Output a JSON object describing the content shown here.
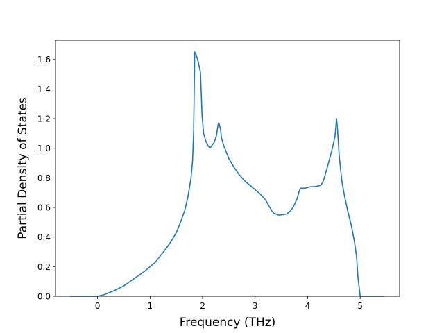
{
  "chart_data": {
    "type": "line",
    "title": "",
    "xlabel": "Frequency (THz)",
    "ylabel": "Partial Density of States",
    "xlim": [
      -0.8,
      5.75
    ],
    "ylim": [
      0.0,
      1.73
    ],
    "xticks": [
      0,
      1,
      2,
      3,
      4,
      5
    ],
    "yticks": [
      0.0,
      0.2,
      0.4,
      0.6,
      0.8,
      1.0,
      1.2,
      1.4,
      1.6
    ],
    "ytick_labels": [
      "0.0",
      "0.2",
      "0.4",
      "0.6",
      "0.8",
      "1.0",
      "1.2",
      "1.4",
      "1.6"
    ],
    "grid": false,
    "legend": "none",
    "colors": {
      "line": "#1f77b4",
      "axes": "#000000"
    },
    "series": [
      {
        "x": [
          -0.52,
          -0.3,
          0.0,
          0.12,
          0.3,
          0.5,
          0.7,
          0.9,
          1.1,
          1.3,
          1.4,
          1.5,
          1.58,
          1.66,
          1.72,
          1.78,
          1.81,
          1.83,
          1.85,
          1.88,
          1.92,
          1.96,
          1.99,
          2.02,
          2.06,
          2.1,
          2.14,
          2.18,
          2.22,
          2.26,
          2.3,
          2.32,
          2.34,
          2.36,
          2.4,
          2.5,
          2.6,
          2.7,
          2.8,
          2.9,
          3.0,
          3.1,
          3.2,
          3.28,
          3.33,
          3.36,
          3.4,
          3.45,
          3.5,
          3.6,
          3.68,
          3.72,
          3.75,
          3.8,
          3.83,
          3.86,
          3.9,
          3.95,
          4.0,
          4.05,
          4.1,
          4.15,
          4.2,
          4.25,
          4.3,
          4.34,
          4.38,
          4.42,
          4.47,
          4.52,
          4.55,
          4.57,
          4.6,
          4.65,
          4.7,
          4.76,
          4.83,
          4.89,
          4.93,
          4.96,
          5.0,
          5.2,
          5.45
        ],
        "y": [
          0.0,
          0.0,
          0.0,
          0.01,
          0.035,
          0.07,
          0.12,
          0.17,
          0.23,
          0.32,
          0.37,
          0.43,
          0.5,
          0.58,
          0.67,
          0.8,
          0.92,
          1.12,
          1.65,
          1.63,
          1.58,
          1.51,
          1.22,
          1.1,
          1.05,
          1.02,
          1.0,
          1.02,
          1.04,
          1.08,
          1.17,
          1.16,
          1.13,
          1.07,
          1.02,
          0.93,
          0.87,
          0.82,
          0.78,
          0.75,
          0.72,
          0.69,
          0.65,
          0.6,
          0.57,
          0.56,
          0.555,
          0.548,
          0.55,
          0.555,
          0.58,
          0.6,
          0.62,
          0.66,
          0.7,
          0.73,
          0.73,
          0.73,
          0.735,
          0.74,
          0.74,
          0.742,
          0.745,
          0.75,
          0.78,
          0.83,
          0.88,
          0.93,
          1.0,
          1.08,
          1.2,
          1.12,
          0.95,
          0.78,
          0.68,
          0.58,
          0.48,
          0.37,
          0.27,
          0.12,
          0.0,
          0.0,
          0.0
        ]
      }
    ]
  }
}
